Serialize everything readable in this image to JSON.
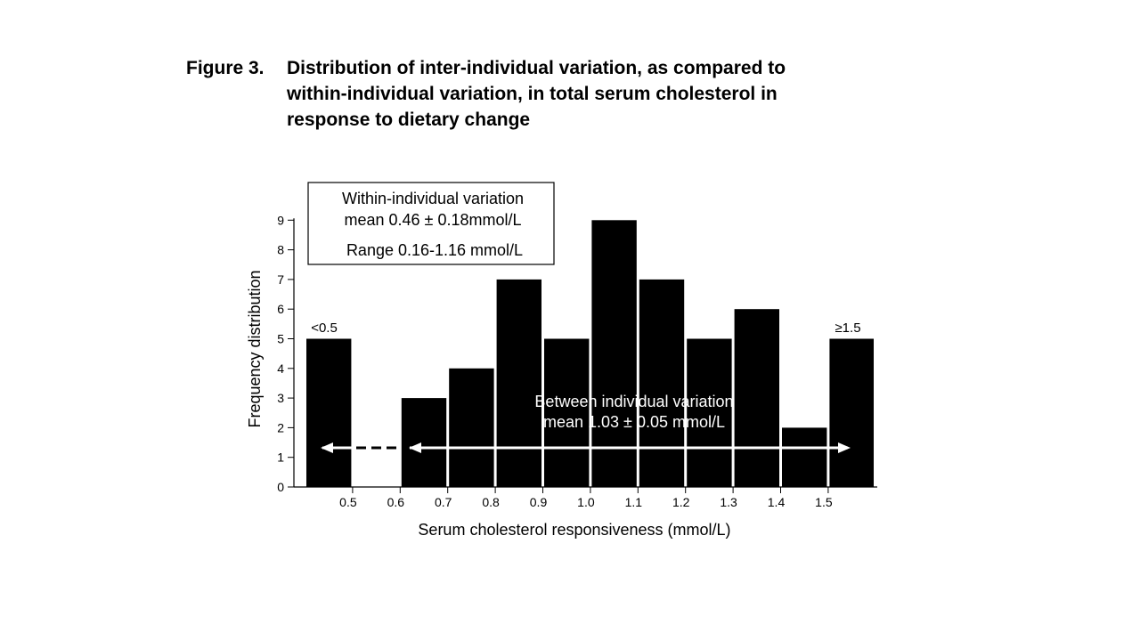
{
  "figure": {
    "label": "Figure 3.",
    "title_lines": [
      "Distribution of inter-individual variation, as compared to",
      "within-individual variation, in total serum cholesterol in",
      "response to dietary change"
    ]
  },
  "chart_data": {
    "type": "bar",
    "xlabel": "Serum cholesterol responsiveness (mmol/L)",
    "ylabel": "Frequency distribution",
    "ylim": [
      0,
      9
    ],
    "yticks": [
      "0",
      "1",
      "2",
      "3",
      "4",
      "5",
      "6",
      "7",
      "8",
      "9"
    ],
    "xticks": [
      "0.5",
      "0.6",
      "0.7",
      "0.8",
      "0.9",
      "1.0",
      "1.1",
      "1.2",
      "1.3",
      "1.4",
      "1.5"
    ],
    "bins": [
      {
        "from": "<0.5",
        "to": "0.5",
        "value": 5
      },
      {
        "from": "0.5",
        "to": "0.6",
        "value": 0
      },
      {
        "from": "0.6",
        "to": "0.7",
        "value": 3
      },
      {
        "from": "0.7",
        "to": "0.8",
        "value": 4
      },
      {
        "from": "0.8",
        "to": "0.9",
        "value": 7
      },
      {
        "from": "0.9",
        "to": "1.0",
        "value": 5
      },
      {
        "from": "1.0",
        "to": "1.1",
        "value": 9
      },
      {
        "from": "1.1",
        "to": "1.2",
        "value": 7
      },
      {
        "from": "1.2",
        "to": "1.3",
        "value": 5
      },
      {
        "from": "1.3",
        "to": "1.4",
        "value": 6
      },
      {
        "from": "1.4",
        "to": "1.5",
        "value": 2
      },
      {
        "from": "1.5",
        "to": "≥1.5",
        "value": 5
      }
    ],
    "bin_labels": {
      "low": "<0.5",
      "high": "≥1.5"
    },
    "within_box": {
      "line1": "Within-individual variation",
      "line2": "mean 0.46 ± 0.18mmol/L",
      "line3": "Range 0.16-1.16 mmol/L"
    },
    "between_annotation": {
      "line1": "Between individual variation",
      "line2": "mean 1.03 ± 0.05 mmol/L"
    },
    "grid": false,
    "colors": {
      "bar": "#000000",
      "annotation": "#ffffff"
    }
  }
}
